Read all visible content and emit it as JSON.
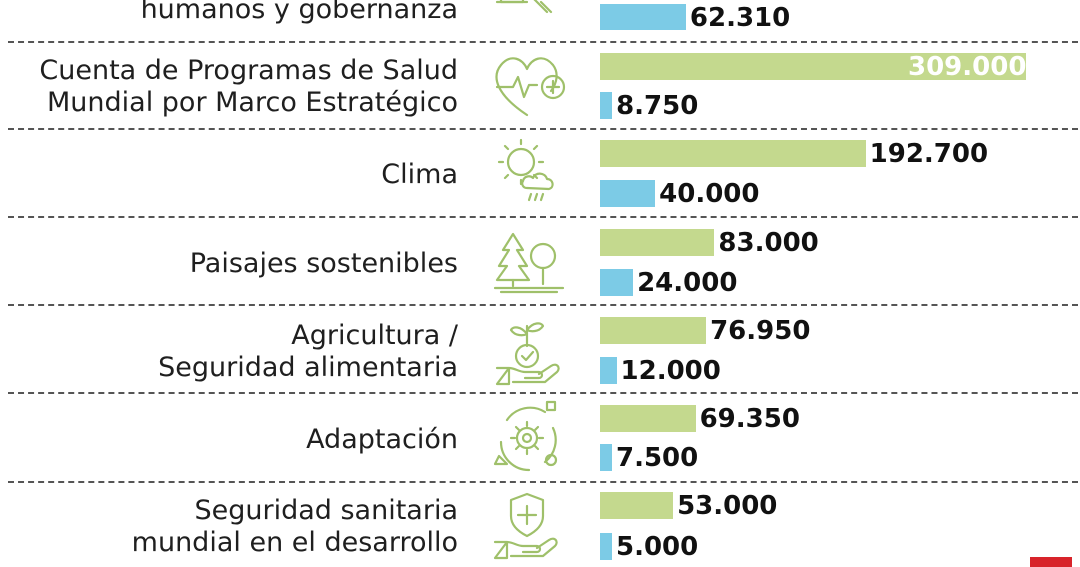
{
  "chart_data": {
    "type": "bar",
    "max_value": 309000,
    "rows": [
      {
        "category": "humanos y gobernanza",
        "values": [
          62310
        ],
        "labels": [
          "62.310"
        ],
        "icon": "gavel-icon"
      },
      {
        "category": "Cuenta de Programas de Salud\nMundial por Marco Estratégico",
        "values": [
          309000,
          8750
        ],
        "labels": [
          "309.000",
          "8.750"
        ],
        "icon": "heart-health-icon"
      },
      {
        "category": "Clima",
        "values": [
          192700,
          40000
        ],
        "labels": [
          "192.700",
          "40.000"
        ],
        "icon": "weather-icon"
      },
      {
        "category": "Paisajes sostenibles",
        "values": [
          83000,
          24000
        ],
        "labels": [
          "83.000",
          "24.000"
        ],
        "icon": "forest-icon"
      },
      {
        "category": "Agricultura /\nSeguridad alimentaria",
        "values": [
          76950,
          12000
        ],
        "labels": [
          "76.950",
          "12.000"
        ],
        "icon": "plant-hand-icon"
      },
      {
        "category": "Adaptación",
        "values": [
          69350,
          7500
        ],
        "labels": [
          "69.350",
          "7.500"
        ],
        "icon": "cycle-gear-icon"
      },
      {
        "category": "Seguridad sanitaria\nmundial en el desarrollo",
        "values": [
          53000,
          5000
        ],
        "labels": [
          "53.000",
          "5.000"
        ],
        "icon": "health-shield-hand-icon"
      }
    ],
    "colors": {
      "green": "#c4d98e",
      "blue": "#7ccbe6",
      "divider": "#555555"
    }
  }
}
